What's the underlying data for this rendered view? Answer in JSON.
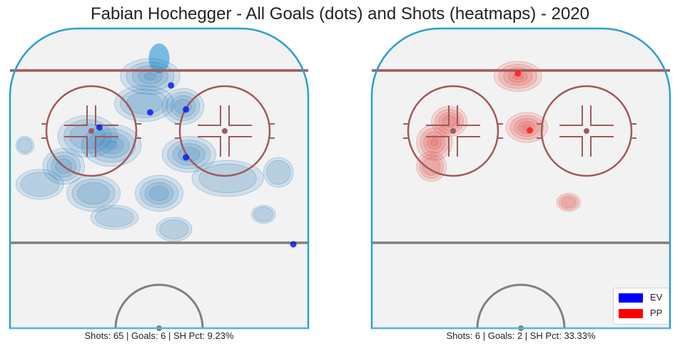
{
  "chart_data": [
    {
      "type": "scatter",
      "title": "Fabian Hochegger - All Goals (dots) and Shots (heatmaps) - 2020",
      "panel": "EV",
      "caption": "Shots: 65 | Goals: 6 | SH Pct: 9.23%",
      "heat_color": "#2b7bba",
      "goal_color": "#0a1fe6",
      "shot_clusters": [
        {
          "x": 0.45,
          "y": 0.25,
          "w": 0.1,
          "h": 0.06,
          "level": 2
        },
        {
          "x": 0.47,
          "y": 0.16,
          "w": 0.1,
          "h": 0.06,
          "level": 4
        },
        {
          "x": 0.58,
          "y": 0.26,
          "w": 0.07,
          "h": 0.06,
          "level": 3
        },
        {
          "x": 0.34,
          "y": 0.39,
          "w": 0.1,
          "h": 0.07,
          "level": 4
        },
        {
          "x": 0.18,
          "y": 0.46,
          "w": 0.07,
          "h": 0.06,
          "level": 3
        },
        {
          "x": 0.26,
          "y": 0.36,
          "w": 0.1,
          "h": 0.07,
          "level": 2
        },
        {
          "x": 0.6,
          "y": 0.42,
          "w": 0.09,
          "h": 0.06,
          "level": 3
        },
        {
          "x": 0.5,
          "y": 0.55,
          "w": 0.08,
          "h": 0.06,
          "level": 3
        },
        {
          "x": 0.28,
          "y": 0.55,
          "w": 0.09,
          "h": 0.06,
          "level": 2
        },
        {
          "x": 0.73,
          "y": 0.5,
          "w": 0.12,
          "h": 0.06,
          "level": 1
        },
        {
          "x": 0.1,
          "y": 0.52,
          "w": 0.08,
          "h": 0.05,
          "level": 1
        },
        {
          "x": 0.35,
          "y": 0.63,
          "w": 0.08,
          "h": 0.04,
          "level": 1
        },
        {
          "x": 0.55,
          "y": 0.67,
          "w": 0.06,
          "h": 0.04,
          "level": 1
        },
        {
          "x": 0.9,
          "y": 0.48,
          "w": 0.05,
          "h": 0.05,
          "level": 1
        },
        {
          "x": 0.05,
          "y": 0.39,
          "w": 0.03,
          "h": 0.03,
          "level": 1
        },
        {
          "x": 0.85,
          "y": 0.62,
          "w": 0.04,
          "h": 0.03,
          "level": 1
        }
      ],
      "crease_blob": {
        "x": 0.5,
        "y": 0.1,
        "w": 0.07,
        "h": 0.05
      },
      "goals": [
        {
          "x": 0.54,
          "y": 0.19
        },
        {
          "x": 0.59,
          "y": 0.27
        },
        {
          "x": 0.47,
          "y": 0.28
        },
        {
          "x": 0.3,
          "y": 0.33
        },
        {
          "x": 0.59,
          "y": 0.43
        },
        {
          "x": 0.95,
          "y": 0.72
        }
      ]
    },
    {
      "type": "scatter",
      "panel": "PP",
      "caption": "Shots: 6 | Goals: 2 | SH Pct: 33.33%",
      "heat_color": "#e0443a",
      "goal_color": "#ff1a1a",
      "shot_clusters": [
        {
          "x": 0.49,
          "y": 0.16,
          "w": 0.08,
          "h": 0.05,
          "level": 4
        },
        {
          "x": 0.52,
          "y": 0.33,
          "w": 0.07,
          "h": 0.05,
          "level": 4
        },
        {
          "x": 0.21,
          "y": 0.38,
          "w": 0.06,
          "h": 0.06,
          "level": 4
        },
        {
          "x": 0.26,
          "y": 0.31,
          "w": 0.06,
          "h": 0.05,
          "level": 3
        },
        {
          "x": 0.2,
          "y": 0.46,
          "w": 0.05,
          "h": 0.05,
          "level": 2
        },
        {
          "x": 0.66,
          "y": 0.58,
          "w": 0.04,
          "h": 0.03,
          "level": 2
        }
      ],
      "goals": [
        {
          "x": 0.49,
          "y": 0.15
        },
        {
          "x": 0.53,
          "y": 0.34
        }
      ]
    }
  ],
  "legend": {
    "position": "bottom-right",
    "items": [
      {
        "label": "EV",
        "color": "#0000ff"
      },
      {
        "label": "PP",
        "color": "#ff0000"
      }
    ]
  }
}
